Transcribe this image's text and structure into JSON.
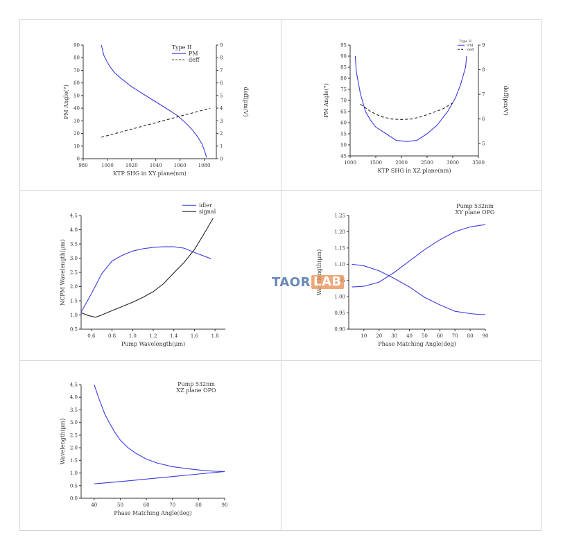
{
  "watermark": {
    "part1": "TAOR",
    "part2": "LAB"
  },
  "chart_data": [
    {
      "type": "line",
      "xlabel": "KTP SHG in XY plane(nm)",
      "ylabel": "PM Angle(°)",
      "y2label": "deff(pm/V)",
      "xlim": [
        980,
        1090
      ],
      "ylim": [
        0,
        90
      ],
      "y2lim": [
        0,
        9
      ],
      "xticks": [
        980,
        1000,
        1020,
        1040,
        1060,
        1080
      ],
      "yticks": [
        0,
        10,
        20,
        30,
        40,
        50,
        60,
        70,
        80,
        90
      ],
      "y2ticks": [
        0,
        1,
        2,
        3,
        4,
        5,
        6,
        7,
        8,
        9
      ],
      "legend_title": "Type II",
      "legend_position": "top-right",
      "series": [
        {
          "name": "PM",
          "axis": "left",
          "style": "solid",
          "color": "#3a3adf",
          "x": [
            995,
            996,
            997,
            999,
            1002,
            1006,
            1012,
            1020,
            1030,
            1040,
            1050,
            1058,
            1065,
            1070,
            1074,
            1078,
            1080,
            1082
          ],
          "y": [
            90,
            86,
            82,
            78,
            73,
            68,
            63,
            57,
            51,
            45,
            39,
            34,
            28,
            23,
            18,
            12,
            7,
            1
          ]
        },
        {
          "name": "deff",
          "axis": "right",
          "style": "dashed",
          "color": "#222222",
          "x": [
            995,
            1085
          ],
          "y": [
            1.7,
            4.0
          ]
        }
      ]
    },
    {
      "type": "line",
      "xlabel": "KTP SHG in XZ plane(nm)",
      "ylabel": "PM Angle(°)",
      "y2label": "deff(pm/V)",
      "xlim": [
        1000,
        3500
      ],
      "ylim": [
        45,
        95
      ],
      "y2lim": [
        4.5,
        9
      ],
      "xticks": [
        1000,
        1500,
        2000,
        2500,
        3000,
        3500
      ],
      "yticks": [
        45,
        50,
        55,
        60,
        65,
        70,
        75,
        80,
        85,
        90,
        95
      ],
      "y2ticks": [
        5,
        6,
        7,
        8,
        9
      ],
      "legend_title": "Type II",
      "legend_position": "top-right",
      "series": [
        {
          "name": "PM",
          "axis": "left",
          "style": "solid",
          "color": "#3a3adf",
          "x": [
            1100,
            1120,
            1200,
            1300,
            1400,
            1500,
            1700,
            1900,
            2100,
            2300,
            2500,
            2700,
            2900,
            3050,
            3150,
            3250,
            3270
          ],
          "y": [
            90,
            83,
            73,
            65,
            61,
            58,
            55,
            52,
            51.5,
            52,
            55,
            59,
            65,
            71,
            77,
            85,
            90
          ]
        },
        {
          "name": "deff",
          "axis": "right",
          "style": "dashed",
          "color": "#222222",
          "x": [
            1200,
            1400,
            1600,
            1800,
            2000,
            2200,
            2400,
            2600,
            2800,
            3000
          ],
          "y": [
            6.6,
            6.3,
            6.1,
            6.0,
            5.98,
            6.0,
            6.1,
            6.25,
            6.4,
            6.65
          ]
        }
      ]
    },
    {
      "type": "line",
      "xlabel": "Pump Wavelength(μm)",
      "ylabel": "NCPM Wavelength(μm)",
      "xlim": [
        0.5,
        1.9
      ],
      "ylim": [
        0.5,
        4.5
      ],
      "xticks": [
        0.6,
        0.8,
        1.0,
        1.2,
        1.4,
        1.6,
        1.8
      ],
      "yticks": [
        0.5,
        1.0,
        1.5,
        2.0,
        2.5,
        3.0,
        3.5,
        4.0,
        4.5
      ],
      "legend_position": "top-right",
      "series": [
        {
          "name": "idler",
          "style": "solid",
          "color": "#3a3adf",
          "x": [
            0.5,
            0.6,
            0.7,
            0.8,
            0.9,
            1.0,
            1.1,
            1.2,
            1.3,
            1.4,
            1.5,
            1.6,
            1.76
          ],
          "y": [
            1.1,
            1.75,
            2.45,
            2.9,
            3.1,
            3.25,
            3.33,
            3.38,
            3.4,
            3.4,
            3.35,
            3.2,
            2.98
          ]
        },
        {
          "name": "signal",
          "style": "solid",
          "color": "#222222",
          "x": [
            0.5,
            0.57,
            0.64,
            0.7,
            0.8,
            0.9,
            1.0,
            1.1,
            1.2,
            1.3,
            1.4,
            1.5,
            1.6,
            1.7,
            1.78
          ],
          "y": [
            1.08,
            0.98,
            0.92,
            1.0,
            1.15,
            1.3,
            1.45,
            1.62,
            1.82,
            2.1,
            2.48,
            2.85,
            3.3,
            3.9,
            4.4
          ]
        }
      ]
    },
    {
      "type": "line",
      "xlabel": "Phase Matching Angle(deg)",
      "ylabel": "Wavelength(μm)",
      "xlim": [
        0,
        90
      ],
      "ylim": [
        0.9,
        1.25
      ],
      "xticks": [
        10,
        20,
        30,
        40,
        50,
        60,
        70,
        80,
        90
      ],
      "yticks": [
        0.9,
        0.95,
        1.0,
        1.05,
        1.1,
        1.15,
        1.2,
        1.25
      ],
      "annotation": [
        "Pump 532nm",
        "XY plane OPO"
      ],
      "series": [
        {
          "style": "solid",
          "color": "#3a3adf",
          "x": [
            2,
            10,
            20,
            30,
            40,
            50,
            60,
            70,
            80,
            87,
            90
          ],
          "y": [
            1.1,
            1.095,
            1.08,
            1.056,
            1.03,
            0.998,
            0.975,
            0.955,
            0.948,
            0.945,
            0.945
          ]
        },
        {
          "style": "solid",
          "color": "#3a3adf",
          "x": [
            2,
            10,
            20,
            30,
            40,
            50,
            60,
            70,
            80,
            87,
            90
          ],
          "y": [
            1.03,
            1.032,
            1.045,
            1.075,
            1.11,
            1.145,
            1.175,
            1.2,
            1.215,
            1.22,
            1.222
          ]
        }
      ]
    },
    {
      "type": "line",
      "xlabel": "Phase Matching Angle(deg)",
      "ylabel": "Wavelength(μm)",
      "xlim": [
        35,
        90
      ],
      "ylim": [
        0,
        4.5
      ],
      "xticks": [
        40,
        50,
        60,
        70,
        80,
        90
      ],
      "yticks": [
        0.0,
        0.5,
        1.0,
        1.5,
        2.0,
        2.5,
        3.0,
        3.5,
        4.0,
        4.5
      ],
      "annotation": [
        "Pump 532nm",
        "XZ plane OPO"
      ],
      "series": [
        {
          "style": "solid",
          "color": "#3a3adf",
          "x": [
            40,
            42,
            44,
            46,
            48,
            50,
            53,
            56,
            60,
            64,
            70,
            76,
            82,
            86,
            90
          ],
          "y": [
            4.5,
            3.9,
            3.35,
            2.95,
            2.6,
            2.3,
            2.0,
            1.78,
            1.55,
            1.4,
            1.25,
            1.17,
            1.1,
            1.07,
            1.06
          ]
        },
        {
          "style": "solid",
          "color": "#3a3adf",
          "x": [
            40,
            50,
            60,
            70,
            80,
            90
          ],
          "y": [
            0.57,
            0.66,
            0.76,
            0.86,
            0.96,
            1.06
          ]
        }
      ]
    }
  ]
}
